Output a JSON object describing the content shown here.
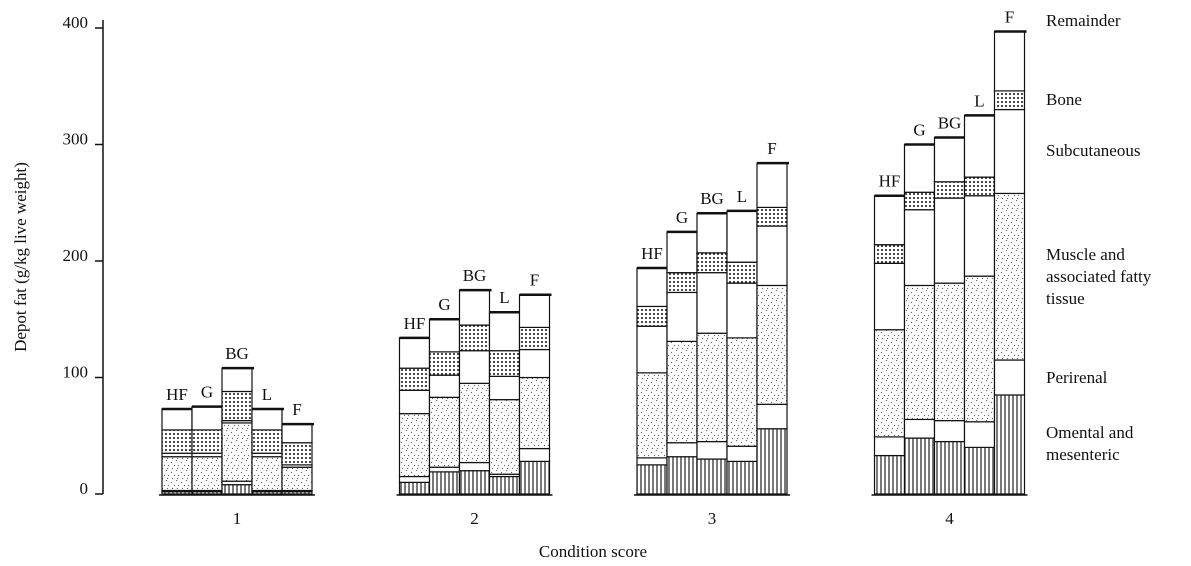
{
  "chart_data": {
    "type": "grouped-stacked-bar",
    "y_label": "Depot fat (g/kg live weight)",
    "x_label": "Condition score",
    "groups": [
      "1",
      "2",
      "3",
      "4"
    ],
    "categories": [
      "HF",
      "G",
      "BG",
      "L",
      "F",
      "HF",
      "G",
      "BG",
      "L",
      "F",
      "HF",
      "G",
      "BG",
      "L",
      "F",
      "HF",
      "G",
      "BG",
      "L",
      "F"
    ],
    "ylim": [
      0,
      400
    ],
    "yticks": [
      0,
      100,
      200,
      300,
      400
    ],
    "series": [
      {
        "name": "Omental and mesenteric",
        "color": "#000",
        "pattern": "vertical-stripes",
        "values": [
          2,
          2,
          8,
          2,
          2,
          10,
          19,
          20,
          15,
          28,
          25,
          32,
          30,
          28,
          56,
          33,
          48,
          45,
          40,
          85
        ]
      },
      {
        "name": "Perirenal",
        "color": "#000",
        "pattern": "plain",
        "values": [
          1,
          1,
          3,
          1,
          1,
          5,
          4,
          7,
          2,
          11,
          6,
          12,
          15,
          13,
          21,
          16,
          16,
          18,
          22,
          30
        ]
      },
      {
        "name": "Muscle and associated fatty tissue",
        "color": "#000",
        "pattern": "speckle",
        "values": [
          29,
          29,
          50,
          29,
          20,
          54,
          60,
          68,
          64,
          61,
          73,
          87,
          93,
          93,
          102,
          92,
          115,
          118,
          125,
          143
        ]
      },
      {
        "name": "Subcutaneous",
        "color": "#000",
        "pattern": "plain",
        "values": [
          3,
          3,
          2,
          3,
          2,
          20,
          19,
          28,
          20,
          24,
          40,
          42,
          52,
          47,
          51,
          57,
          65,
          73,
          69,
          72
        ]
      },
      {
        "name": "Bone",
        "color": "#000",
        "pattern": "dots",
        "values": [
          20,
          20,
          25,
          20,
          19,
          19,
          20,
          22,
          22,
          19,
          17,
          17,
          17,
          18,
          16,
          16,
          15,
          14,
          16,
          16
        ]
      },
      {
        "name": "Remainder",
        "color": "#000",
        "pattern": "plain",
        "values": [
          18,
          20,
          20,
          18,
          16,
          26,
          28,
          30,
          33,
          28,
          33,
          35,
          34,
          44,
          38,
          42,
          41,
          38,
          53,
          51
        ]
      }
    ]
  }
}
